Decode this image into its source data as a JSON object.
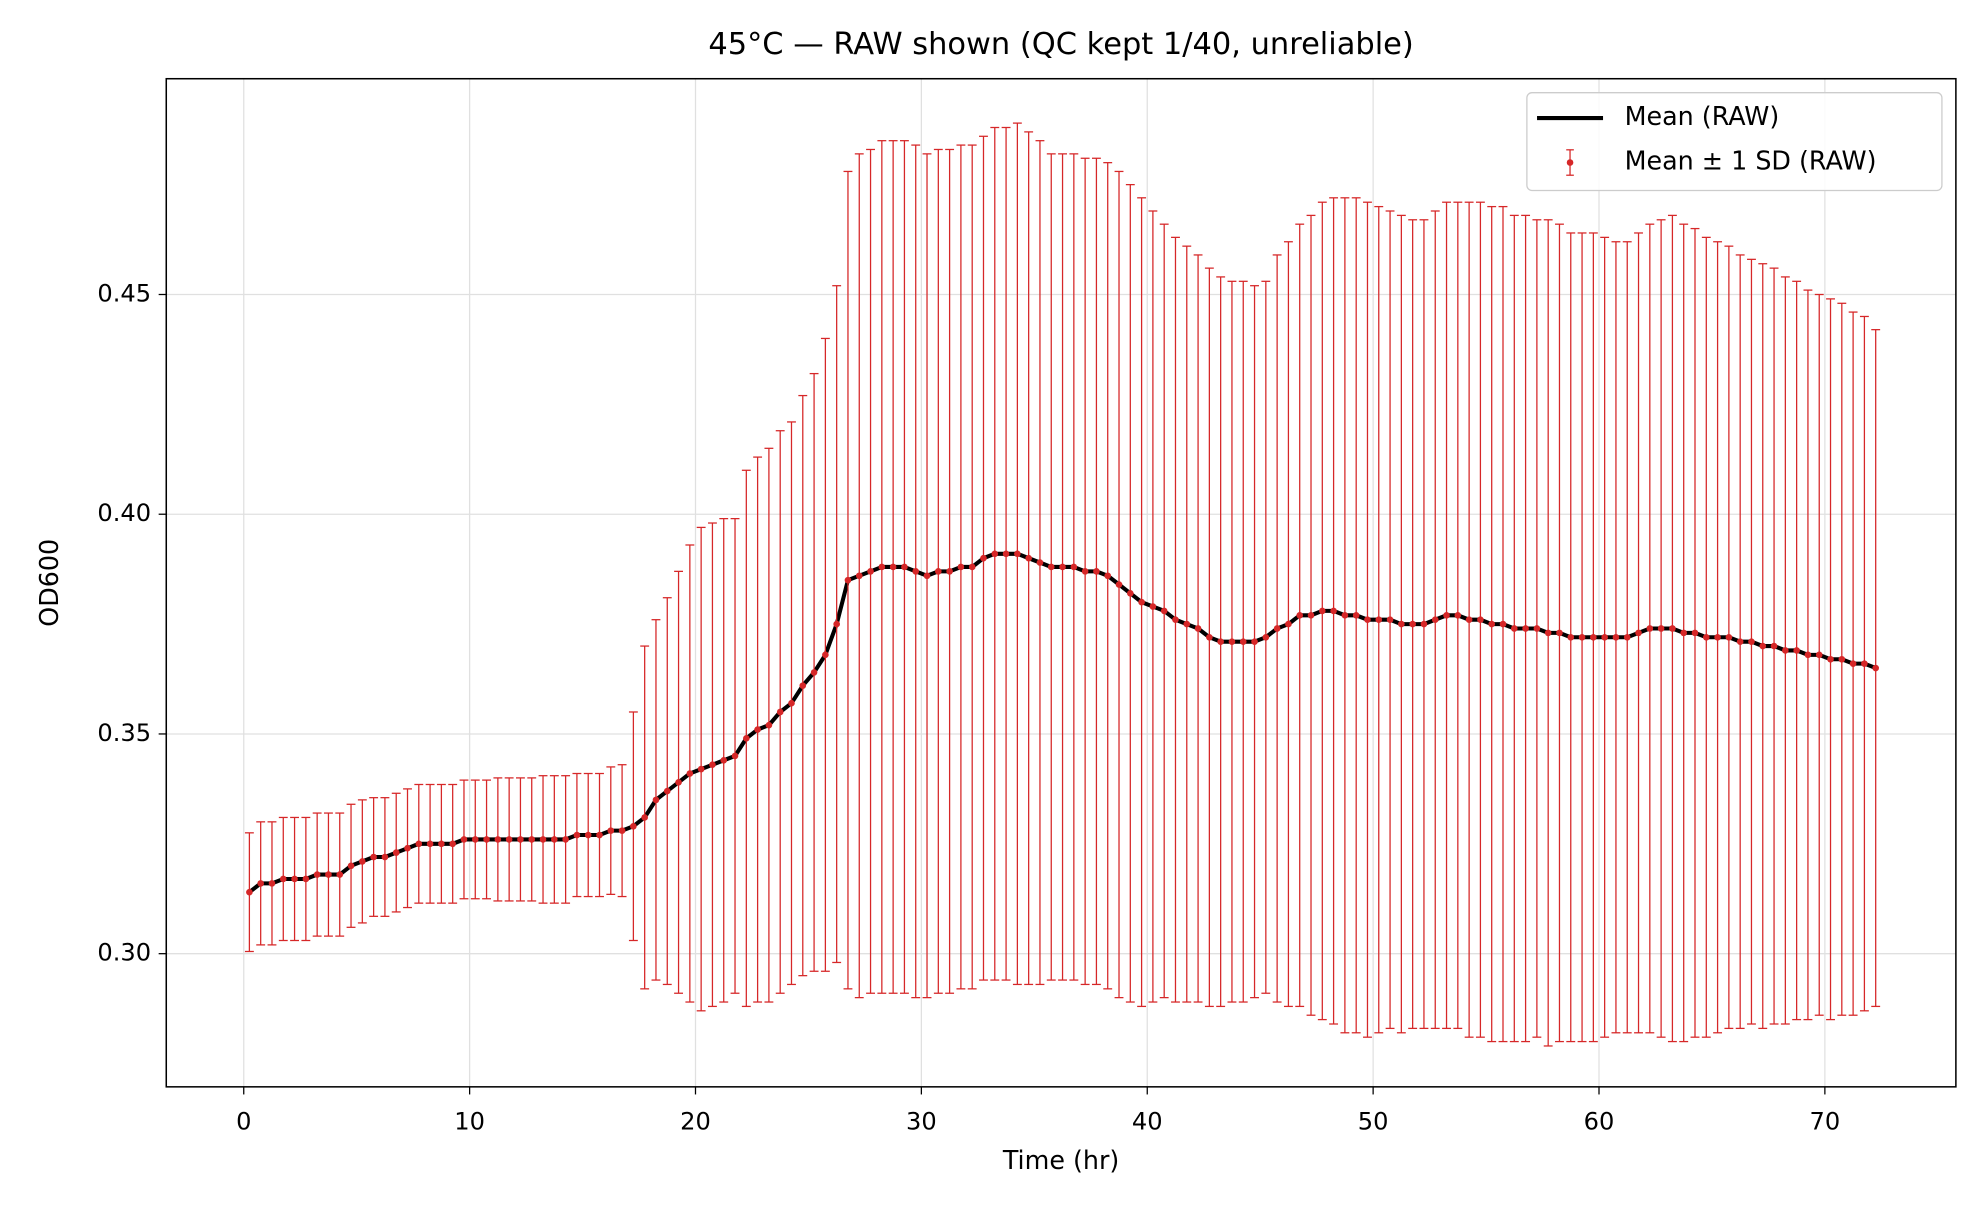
{
  "chart_data": {
    "type": "errorbar",
    "title": "45°C — RAW shown (QC kept 1/40, unreliable)",
    "x_label": "Time (hr)",
    "y_label": "OD600",
    "xlim": [
      -3.43,
      75.8
    ],
    "ylim": [
      0.2697,
      0.4991
    ],
    "xticks": [
      0,
      10,
      20,
      30,
      40,
      50,
      60,
      70
    ],
    "yticks": [
      {
        "value": 0.3,
        "label": "0.30"
      },
      0.35,
      {
        "value": 0.4,
        "label": "0.40"
      },
      0.45
    ],
    "grid": true,
    "legend": "upper right",
    "x": [
      0.25,
      0.75,
      1.25,
      1.75,
      2.25,
      2.75,
      3.25,
      3.75,
      4.25,
      4.75,
      5.25,
      5.75,
      6.25,
      6.75,
      7.25,
      7.75,
      8.25,
      8.75,
      9.25,
      9.75,
      10.25,
      10.75,
      11.25,
      11.75,
      12.25,
      12.75,
      13.25,
      13.75,
      14.25,
      14.75,
      15.25,
      15.75,
      16.25,
      16.75,
      17.25,
      17.75,
      18.25,
      18.75,
      19.25,
      19.75,
      20.25,
      20.75,
      21.25,
      21.75,
      22.25,
      22.75,
      23.25,
      23.75,
      24.25,
      24.75,
      25.25,
      25.75,
      26.25,
      26.75,
      27.25,
      27.75,
      28.25,
      28.75,
      29.25,
      29.75,
      30.25,
      30.75,
      31.25,
      31.75,
      32.25,
      32.75,
      33.25,
      33.75,
      34.25,
      34.75,
      35.25,
      35.75,
      36.25,
      36.75,
      37.25,
      37.75,
      38.25,
      38.75,
      39.25,
      39.75,
      40.25,
      40.75,
      41.25,
      41.75,
      42.25,
      42.75,
      43.25,
      43.75,
      44.25,
      44.75,
      45.25,
      45.75,
      46.25,
      46.75,
      47.25,
      47.75,
      48.25,
      48.75,
      49.25,
      49.75,
      50.25,
      50.75,
      51.25,
      51.75,
      52.25,
      52.75,
      53.25,
      53.75,
      54.25,
      54.75,
      55.25,
      55.75,
      56.25,
      56.75,
      57.25,
      57.75,
      58.25,
      58.75,
      59.25,
      59.75,
      60.25,
      60.75,
      61.25,
      61.75,
      62.25,
      62.75,
      63.25,
      63.75,
      64.25,
      64.75,
      65.25,
      65.75,
      66.25,
      66.75,
      67.25,
      67.75,
      68.25,
      68.75,
      69.25,
      69.75,
      70.25,
      70.75,
      71.25,
      71.75,
      72.25
    ],
    "series": [
      {
        "name": "Mean (RAW)",
        "color": "#000000",
        "values": [
          0.314,
          0.316,
          0.316,
          0.317,
          0.317,
          0.317,
          0.318,
          0.318,
          0.318,
          0.32,
          0.321,
          0.322,
          0.322,
          0.323,
          0.324,
          0.325,
          0.325,
          0.325,
          0.325,
          0.326,
          0.326,
          0.326,
          0.326,
          0.326,
          0.326,
          0.326,
          0.326,
          0.326,
          0.326,
          0.327,
          0.327,
          0.327,
          0.328,
          0.328,
          0.329,
          0.331,
          0.335,
          0.337,
          0.339,
          0.341,
          0.342,
          0.343,
          0.344,
          0.345,
          0.349,
          0.351,
          0.352,
          0.355,
          0.357,
          0.361,
          0.364,
          0.368,
          0.375,
          0.385,
          0.386,
          0.387,
          0.388,
          0.388,
          0.388,
          0.387,
          0.386,
          0.387,
          0.387,
          0.388,
          0.388,
          0.39,
          0.391,
          0.391,
          0.391,
          0.39,
          0.389,
          0.388,
          0.388,
          0.388,
          0.387,
          0.387,
          0.386,
          0.384,
          0.382,
          0.38,
          0.379,
          0.378,
          0.376,
          0.375,
          0.374,
          0.372,
          0.371,
          0.371,
          0.371,
          0.371,
          0.372,
          0.374,
          0.375,
          0.377,
          0.377,
          0.378,
          0.378,
          0.377,
          0.377,
          0.376,
          0.376,
          0.376,
          0.375,
          0.375,
          0.375,
          0.376,
          0.377,
          0.377,
          0.376,
          0.376,
          0.375,
          0.375,
          0.374,
          0.374,
          0.374,
          0.373,
          0.373,
          0.372,
          0.372,
          0.372,
          0.372,
          0.372,
          0.372,
          0.373,
          0.374,
          0.374,
          0.374,
          0.373,
          0.373,
          0.372,
          0.372,
          0.372,
          0.371,
          0.371,
          0.37,
          0.37,
          0.369,
          0.369,
          0.368,
          0.368,
          0.367,
          0.367,
          0.366,
          0.366,
          0.365
        ]
      },
      {
        "name": "Mean ± 1 SD (RAW)",
        "color": "#d62728",
        "values": [
          0.314,
          0.316,
          0.316,
          0.317,
          0.317,
          0.317,
          0.318,
          0.318,
          0.318,
          0.32,
          0.321,
          0.322,
          0.322,
          0.323,
          0.324,
          0.325,
          0.325,
          0.325,
          0.325,
          0.326,
          0.326,
          0.326,
          0.326,
          0.326,
          0.326,
          0.326,
          0.326,
          0.326,
          0.326,
          0.327,
          0.327,
          0.327,
          0.328,
          0.328,
          0.329,
          0.331,
          0.335,
          0.337,
          0.339,
          0.341,
          0.342,
          0.343,
          0.344,
          0.345,
          0.349,
          0.351,
          0.352,
          0.355,
          0.357,
          0.361,
          0.364,
          0.368,
          0.375,
          0.385,
          0.386,
          0.387,
          0.388,
          0.388,
          0.388,
          0.387,
          0.386,
          0.387,
          0.387,
          0.388,
          0.388,
          0.39,
          0.391,
          0.391,
          0.391,
          0.39,
          0.389,
          0.388,
          0.388,
          0.388,
          0.387,
          0.387,
          0.386,
          0.384,
          0.382,
          0.38,
          0.379,
          0.378,
          0.376,
          0.375,
          0.374,
          0.372,
          0.371,
          0.371,
          0.371,
          0.371,
          0.372,
          0.374,
          0.375,
          0.377,
          0.377,
          0.378,
          0.378,
          0.377,
          0.377,
          0.376,
          0.376,
          0.376,
          0.375,
          0.375,
          0.375,
          0.376,
          0.377,
          0.377,
          0.376,
          0.376,
          0.375,
          0.375,
          0.374,
          0.374,
          0.374,
          0.373,
          0.373,
          0.372,
          0.372,
          0.372,
          0.372,
          0.372,
          0.372,
          0.373,
          0.374,
          0.374,
          0.374,
          0.373,
          0.373,
          0.372,
          0.372,
          0.372,
          0.371,
          0.371,
          0.37,
          0.37,
          0.369,
          0.369,
          0.368,
          0.368,
          0.367,
          0.367,
          0.366,
          0.366,
          0.365
        ],
        "errors": [
          0.0135,
          0.014,
          0.014,
          0.014,
          0.014,
          0.014,
          0.014,
          0.014,
          0.014,
          0.014,
          0.014,
          0.0135,
          0.0135,
          0.0135,
          0.0135,
          0.0135,
          0.0135,
          0.0135,
          0.0135,
          0.0135,
          0.0135,
          0.0135,
          0.014,
          0.014,
          0.014,
          0.014,
          0.0145,
          0.0145,
          0.0145,
          0.014,
          0.014,
          0.014,
          0.0145,
          0.015,
          0.026,
          0.039,
          0.041,
          0.044,
          0.048,
          0.052,
          0.055,
          0.055,
          0.055,
          0.054,
          0.061,
          0.062,
          0.063,
          0.064,
          0.064,
          0.066,
          0.068,
          0.072,
          0.077,
          0.093,
          0.096,
          0.096,
          0.097,
          0.097,
          0.097,
          0.097,
          0.096,
          0.096,
          0.096,
          0.096,
          0.096,
          0.096,
          0.097,
          0.097,
          0.098,
          0.097,
          0.096,
          0.094,
          0.094,
          0.094,
          0.094,
          0.094,
          0.094,
          0.094,
          0.093,
          0.092,
          0.09,
          0.088,
          0.087,
          0.086,
          0.085,
          0.084,
          0.083,
          0.082,
          0.082,
          0.081,
          0.081,
          0.085,
          0.087,
          0.089,
          0.091,
          0.093,
          0.094,
          0.095,
          0.095,
          0.095,
          0.094,
          0.093,
          0.093,
          0.092,
          0.092,
          0.093,
          0.094,
          0.094,
          0.095,
          0.095,
          0.095,
          0.095,
          0.094,
          0.094,
          0.093,
          0.094,
          0.093,
          0.092,
          0.092,
          0.092,
          0.091,
          0.09,
          0.09,
          0.091,
          0.092,
          0.093,
          0.094,
          0.093,
          0.092,
          0.091,
          0.09,
          0.089,
          0.088,
          0.087,
          0.087,
          0.086,
          0.085,
          0.084,
          0.083,
          0.082,
          0.082,
          0.081,
          0.08,
          0.079,
          0.077
        ]
      }
    ]
  }
}
